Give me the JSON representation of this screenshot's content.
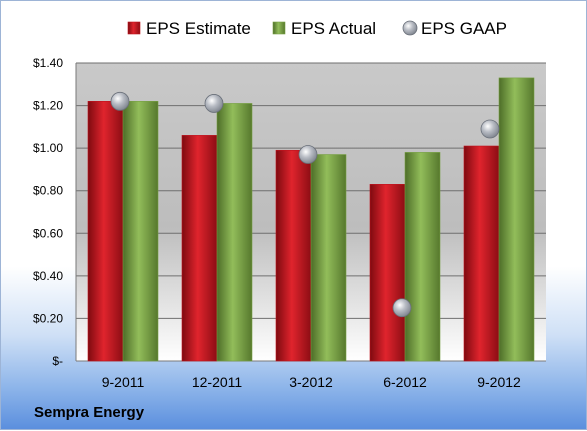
{
  "chart_data": {
    "type": "bar",
    "title": "",
    "caption": "Sempra Energy",
    "categories": [
      "9-2011",
      "12-2011",
      "3-2012",
      "6-2012",
      "9-2012"
    ],
    "series": [
      {
        "name": "EPS Estimate",
        "kind": "bar",
        "color": "#c0111c",
        "values": [
          1.22,
          1.06,
          0.99,
          0.83,
          1.01
        ]
      },
      {
        "name": "EPS Actual",
        "kind": "bar",
        "color": "#77a043",
        "values": [
          1.22,
          1.21,
          0.97,
          0.98,
          1.33
        ]
      },
      {
        "name": "EPS GAAP",
        "kind": "marker",
        "color": "#a0a6b0",
        "values": [
          1.22,
          1.21,
          0.97,
          0.25,
          1.09
        ]
      }
    ],
    "ylim": [
      0,
      1.4
    ],
    "yticks": [
      {
        "value": 0,
        "label": "$-"
      },
      {
        "value": 0.2,
        "label": "$0.20"
      },
      {
        "value": 0.4,
        "label": "$0.40"
      },
      {
        "value": 0.6,
        "label": "$0.60"
      },
      {
        "value": 0.8,
        "label": "$0.80"
      },
      {
        "value": 1.0,
        "label": "$1.00"
      },
      {
        "value": 1.2,
        "label": "$1.20"
      },
      {
        "value": 1.4,
        "label": "$1.40"
      }
    ],
    "grid": true,
    "legend_position": "top"
  }
}
